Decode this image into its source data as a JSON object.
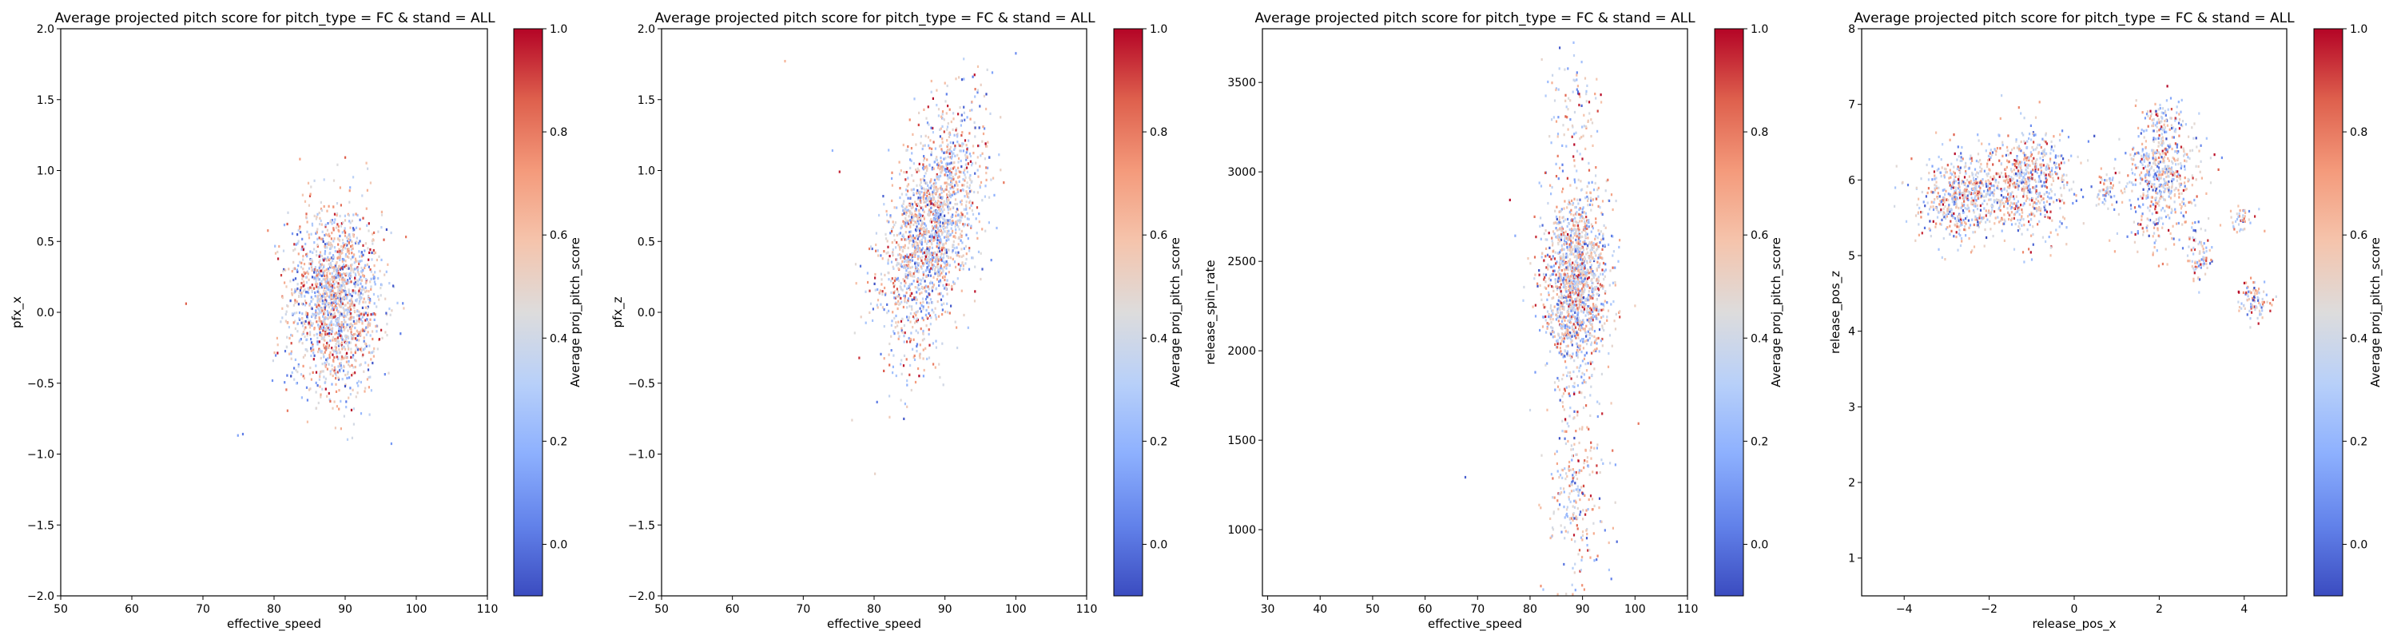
{
  "figure": {
    "background": "#ffffff"
  },
  "chart_data": [
    {
      "type": "scatter",
      "title": "Average projected pitch score for pitch_type = FC & stand = ALL",
      "xlabel": "effective_speed",
      "ylabel": "pfx_x",
      "xlim": [
        50,
        110
      ],
      "ylim": [
        -2.0,
        2.0
      ],
      "xticks": [
        50,
        60,
        70,
        80,
        90,
        100,
        110
      ],
      "yticks": [
        -2.0,
        -1.5,
        -1.0,
        -0.5,
        0.0,
        0.5,
        1.0,
        1.5,
        2.0
      ],
      "ytick_labels": [
        "−2.0",
        "−1.5",
        "−1.0",
        "−0.5",
        "0.0",
        "0.5",
        "1.0",
        "1.5",
        "2.0"
      ],
      "clusters": [
        {
          "cx": 88.5,
          "cy": 0.1,
          "sx": 3.3,
          "sy": 0.33,
          "n": 1700
        }
      ],
      "outliers": [
        {
          "x": 67.5,
          "y": 0.07
        },
        {
          "x": 75.5,
          "y": -0.85
        },
        {
          "x": 74.8,
          "y": -0.86
        }
      ],
      "colorbar": {
        "label": "Average proj_pitch_score",
        "range": [
          -0.1,
          1.0
        ],
        "ticks": [
          0.0,
          0.2,
          0.4,
          0.6,
          0.8,
          1.0
        ],
        "tick_labels": [
          "0.0",
          "0.2",
          "0.4",
          "0.6",
          "0.8",
          "1.0"
        ],
        "colormap": "coolwarm"
      }
    },
    {
      "type": "scatter",
      "title": "Average projected pitch score for pitch_type = FC & stand = ALL",
      "xlabel": "effective_speed",
      "ylabel": "pfx_z",
      "xlim": [
        50,
        110
      ],
      "ylim": [
        -2.0,
        2.0
      ],
      "xticks": [
        50,
        60,
        70,
        80,
        90,
        100,
        110
      ],
      "yticks": [
        -2.0,
        -1.5,
        -1.0,
        -0.5,
        0.0,
        0.5,
        1.0,
        1.5,
        2.0
      ],
      "ytick_labels": [
        "−2.0",
        "−1.5",
        "−1.0",
        "−0.5",
        "0.0",
        "0.5",
        "1.0",
        "1.5",
        "2.0"
      ],
      "clusters": [
        {
          "cx": 88.0,
          "cy": 0.6,
          "sx": 3.5,
          "sy": 0.42,
          "n": 1800,
          "corr": 0.5
        }
      ],
      "outliers": [
        {
          "x": 67.3,
          "y": 1.78
        },
        {
          "x": 80.0,
          "y": -1.13
        },
        {
          "x": 74.0,
          "y": 1.15
        },
        {
          "x": 75.0,
          "y": 1.0
        }
      ],
      "colorbar": {
        "label": "Average proj_pitch_score",
        "range": [
          -0.1,
          1.0
        ],
        "ticks": [
          0.0,
          0.2,
          0.4,
          0.6,
          0.8,
          1.0
        ],
        "tick_labels": [
          "0.0",
          "0.2",
          "0.4",
          "0.6",
          "0.8",
          "1.0"
        ],
        "colormap": "coolwarm"
      }
    },
    {
      "type": "scatter",
      "title": "Average projected pitch score for pitch_type = FC & stand = ALL",
      "xlabel": "effective_speed",
      "ylabel": "release_spin_rate",
      "xlim": [
        29,
        110
      ],
      "ylim": [
        630,
        3800
      ],
      "xticks": [
        30,
        40,
        50,
        60,
        70,
        80,
        90,
        100,
        110
      ],
      "yticks": [
        1000,
        1500,
        2000,
        2500,
        3000,
        3500
      ],
      "ytick_labels": [
        "1000",
        "1500",
        "2000",
        "2500",
        "3000",
        "3500"
      ],
      "clusters": [
        {
          "cx": 88.5,
          "cy": 2400,
          "sx": 3.0,
          "sy": 260,
          "n": 1500
        },
        {
          "cx": 88.5,
          "cy": 1250,
          "sx": 2.8,
          "sy": 280,
          "n": 260
        },
        {
          "cx": 88.5,
          "cy": 3350,
          "sx": 2.6,
          "sy": 170,
          "n": 90
        }
      ],
      "outliers": [
        {
          "x": 67.5,
          "y": 1300
        },
        {
          "x": 76.0,
          "y": 2850
        },
        {
          "x": 77.0,
          "y": 2650
        },
        {
          "x": 100.5,
          "y": 1600
        }
      ],
      "colorbar": {
        "label": "Average proj_pitch_score",
        "range": [
          -0.1,
          1.0
        ],
        "ticks": [
          0.0,
          0.2,
          0.4,
          0.6,
          0.8,
          1.0
        ],
        "tick_labels": [
          "0.0",
          "0.2",
          "0.4",
          "0.6",
          "0.8",
          "1.0"
        ],
        "colormap": "coolwarm"
      }
    },
    {
      "type": "scatter",
      "title": "Average projected pitch score for pitch_type = FC & stand = ALL",
      "xlabel": "release_pos_x",
      "ylabel": "release_pos_z",
      "xlim": [
        -5.0,
        5.0
      ],
      "ylim": [
        0.5,
        8.0
      ],
      "xticks": [
        -4,
        -2,
        0,
        2,
        4
      ],
      "xtick_labels": [
        "−4",
        "−2",
        "0",
        "2",
        "4"
      ],
      "yticks": [
        1,
        2,
        3,
        4,
        5,
        6,
        7,
        8
      ],
      "ytick_labels": [
        "1",
        "2",
        "3",
        "4",
        "5",
        "6",
        "7",
        "8"
      ],
      "clusters": [
        {
          "cx": -2.6,
          "cy": 5.8,
          "sx": 0.55,
          "sy": 0.3,
          "n": 600
        },
        {
          "cx": -1.1,
          "cy": 5.95,
          "sx": 0.5,
          "sy": 0.35,
          "n": 600
        },
        {
          "cx": 2.0,
          "cy": 6.0,
          "sx": 0.45,
          "sy": 0.4,
          "n": 550
        },
        {
          "cx": 2.0,
          "cy": 6.8,
          "sx": 0.25,
          "sy": 0.15,
          "n": 80
        },
        {
          "cx": 0.7,
          "cy": 5.9,
          "sx": 0.18,
          "sy": 0.12,
          "n": 60
        },
        {
          "cx": 2.9,
          "cy": 5.0,
          "sx": 0.15,
          "sy": 0.2,
          "n": 80
        },
        {
          "cx": 4.2,
          "cy": 4.4,
          "sx": 0.2,
          "sy": 0.12,
          "n": 90
        },
        {
          "cx": 3.9,
          "cy": 5.5,
          "sx": 0.18,
          "sy": 0.1,
          "n": 40
        }
      ],
      "outliers": [],
      "colorbar": {
        "label": "Average proj_pitch_score",
        "range": [
          -0.1,
          1.0
        ],
        "ticks": [
          0.0,
          0.2,
          0.4,
          0.6,
          0.8,
          1.0
        ],
        "tick_labels": [
          "0.0",
          "0.2",
          "0.4",
          "0.6",
          "0.8",
          "1.0"
        ],
        "colormap": "coolwarm"
      }
    }
  ]
}
